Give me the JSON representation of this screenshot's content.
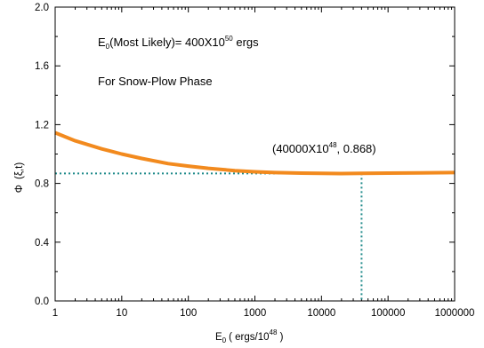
{
  "chart_data": {
    "type": "line",
    "x_scale": "log",
    "xlim": [
      1,
      1000000
    ],
    "ylim": [
      0.0,
      2.0
    ],
    "x_ticks": [
      1,
      10,
      100,
      1000,
      10000,
      100000,
      1000000
    ],
    "x_tick_labels": [
      "1",
      "10",
      "100",
      "1000",
      "10000",
      "100000",
      "1000000"
    ],
    "y_ticks": [
      0.0,
      0.4,
      0.8,
      1.2,
      1.6,
      2.0
    ],
    "y_tick_labels": [
      "0.0",
      "0.4",
      "0.8",
      "1.2",
      "1.6",
      "2.0"
    ],
    "xlabel": {
      "main": "E",
      "sub": "0",
      "mid": "( ergs/10",
      "sup": "48",
      "end": " )"
    },
    "ylabel": {
      "phi": "Φ",
      "args": "(ξ,t)"
    },
    "grid": false,
    "series": [
      {
        "color": "#f28a1e",
        "x": [
          1,
          2,
          5,
          10,
          20,
          50,
          100,
          200,
          500,
          1000,
          2000,
          5000,
          10000,
          20000,
          40000,
          100000,
          300000,
          1000000
        ],
        "y": [
          1.145,
          1.09,
          1.035,
          1.0,
          0.97,
          0.935,
          0.918,
          0.903,
          0.887,
          0.879,
          0.874,
          0.87,
          0.868,
          0.867,
          0.868,
          0.87,
          0.872,
          0.874
        ]
      }
    ],
    "reference_lines": {
      "color": "#1f8a8a",
      "point": {
        "x": 40000,
        "y": 0.868
      }
    },
    "annotations": {
      "energy_line": {
        "prefix": "E",
        "sub": "0",
        "mid": "(Most Likely)= 400X10",
        "sup": "50",
        "suffix": " ergs"
      },
      "phase_line": "For Snow-Plow Phase",
      "point_label": {
        "prefix": "(40000X10",
        "sup": "48",
        "suffix": ", 0.868)"
      }
    }
  }
}
